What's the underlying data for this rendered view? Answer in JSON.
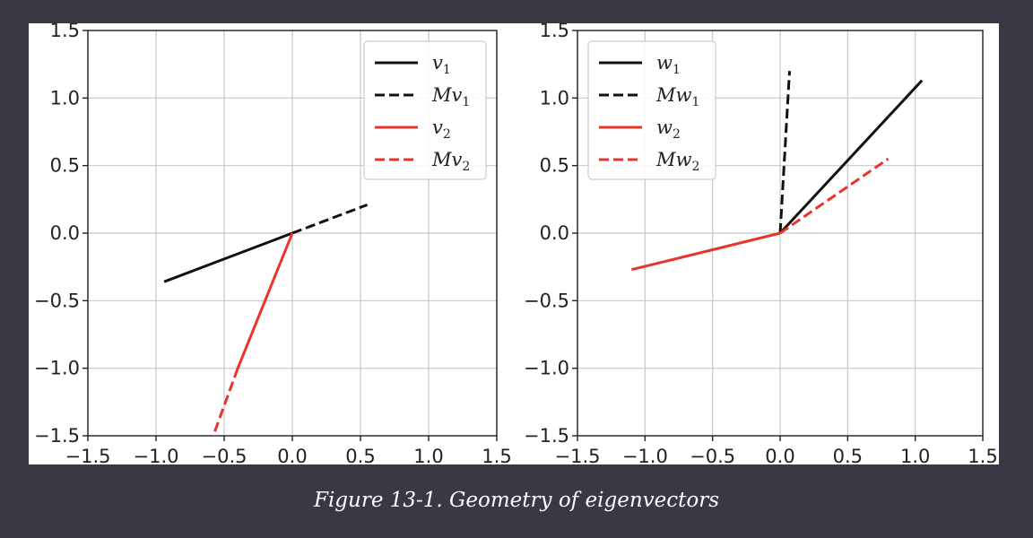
{
  "caption": "Figure 13-1. Geometry of eigenvectors",
  "colors": {
    "black": "#111111",
    "red": "#e8352b",
    "grid": "#c8c8c8",
    "page_background": "#3a3843",
    "caption_text": "#ffffff"
  },
  "chart_data": [
    {
      "type": "line",
      "title": "",
      "xlabel": "",
      "ylabel": "",
      "xlim": [
        -1.5,
        1.5
      ],
      "ylim": [
        -1.5,
        1.5
      ],
      "xticks": [
        -1.5,
        -1.0,
        -0.5,
        0.0,
        0.5,
        1.0,
        1.5
      ],
      "yticks": [
        -1.5,
        -1.0,
        -0.5,
        0.0,
        0.5,
        1.0,
        1.5
      ],
      "xtick_labels": [
        "−1.5",
        "−1.0",
        "−0.5",
        "0.0",
        "0.5",
        "1.0",
        "1.5"
      ],
      "ytick_labels": [
        "−1.5",
        "−1.0",
        "−0.5",
        "0.0",
        "0.5",
        "1.0",
        "1.5"
      ],
      "grid": true,
      "legend_position": "top-right",
      "series": [
        {
          "base": "v",
          "prefix": "",
          "sub": "1",
          "color": "black",
          "style": "solid",
          "points": [
            [
              0,
              0
            ],
            [
              -0.94,
              -0.36
            ]
          ]
        },
        {
          "base": "v",
          "prefix": "M",
          "sub": "1",
          "color": "black",
          "style": "dashed",
          "points": [
            [
              0,
              0
            ],
            [
              0.55,
              0.21
            ]
          ]
        },
        {
          "base": "v",
          "prefix": "",
          "sub": "2",
          "color": "red",
          "style": "solid",
          "points": [
            [
              0,
              0
            ],
            [
              -0.4,
              -1.0
            ]
          ]
        },
        {
          "base": "v",
          "prefix": "M",
          "sub": "2",
          "color": "red",
          "style": "dashed",
          "points": [
            [
              -0.4,
              -1.0
            ],
            [
              -0.58,
              -1.5
            ]
          ]
        }
      ]
    },
    {
      "type": "line",
      "title": "",
      "xlabel": "",
      "ylabel": "",
      "xlim": [
        -1.5,
        1.5
      ],
      "ylim": [
        -1.5,
        1.5
      ],
      "xticks": [
        -1.5,
        -1.0,
        -0.5,
        0.0,
        0.5,
        1.0,
        1.5
      ],
      "yticks": [
        -1.5,
        -1.0,
        -0.5,
        0.0,
        0.5,
        1.0,
        1.5
      ],
      "xtick_labels": [
        "−1.5",
        "−1.0",
        "−0.5",
        "0.0",
        "0.5",
        "1.0",
        "1.5"
      ],
      "ytick_labels": [
        "−1.5",
        "−1.0",
        "−0.5",
        "0.0",
        "0.5",
        "1.0",
        "1.5"
      ],
      "grid": true,
      "legend_position": "top-left",
      "series": [
        {
          "base": "w",
          "prefix": "",
          "sub": "1",
          "color": "black",
          "style": "solid",
          "points": [
            [
              0,
              0
            ],
            [
              1.05,
              1.13
            ]
          ]
        },
        {
          "base": "w",
          "prefix": "M",
          "sub": "1",
          "color": "black",
          "style": "dashed",
          "points": [
            [
              0,
              0
            ],
            [
              0.07,
              1.2
            ]
          ]
        },
        {
          "base": "w",
          "prefix": "",
          "sub": "2",
          "color": "red",
          "style": "solid",
          "points": [
            [
              0,
              0
            ],
            [
              -1.1,
              -0.27
            ]
          ]
        },
        {
          "base": "w",
          "prefix": "M",
          "sub": "2",
          "color": "red",
          "style": "dashed",
          "points": [
            [
              0,
              0
            ],
            [
              0.8,
              0.55
            ]
          ]
        }
      ]
    }
  ]
}
